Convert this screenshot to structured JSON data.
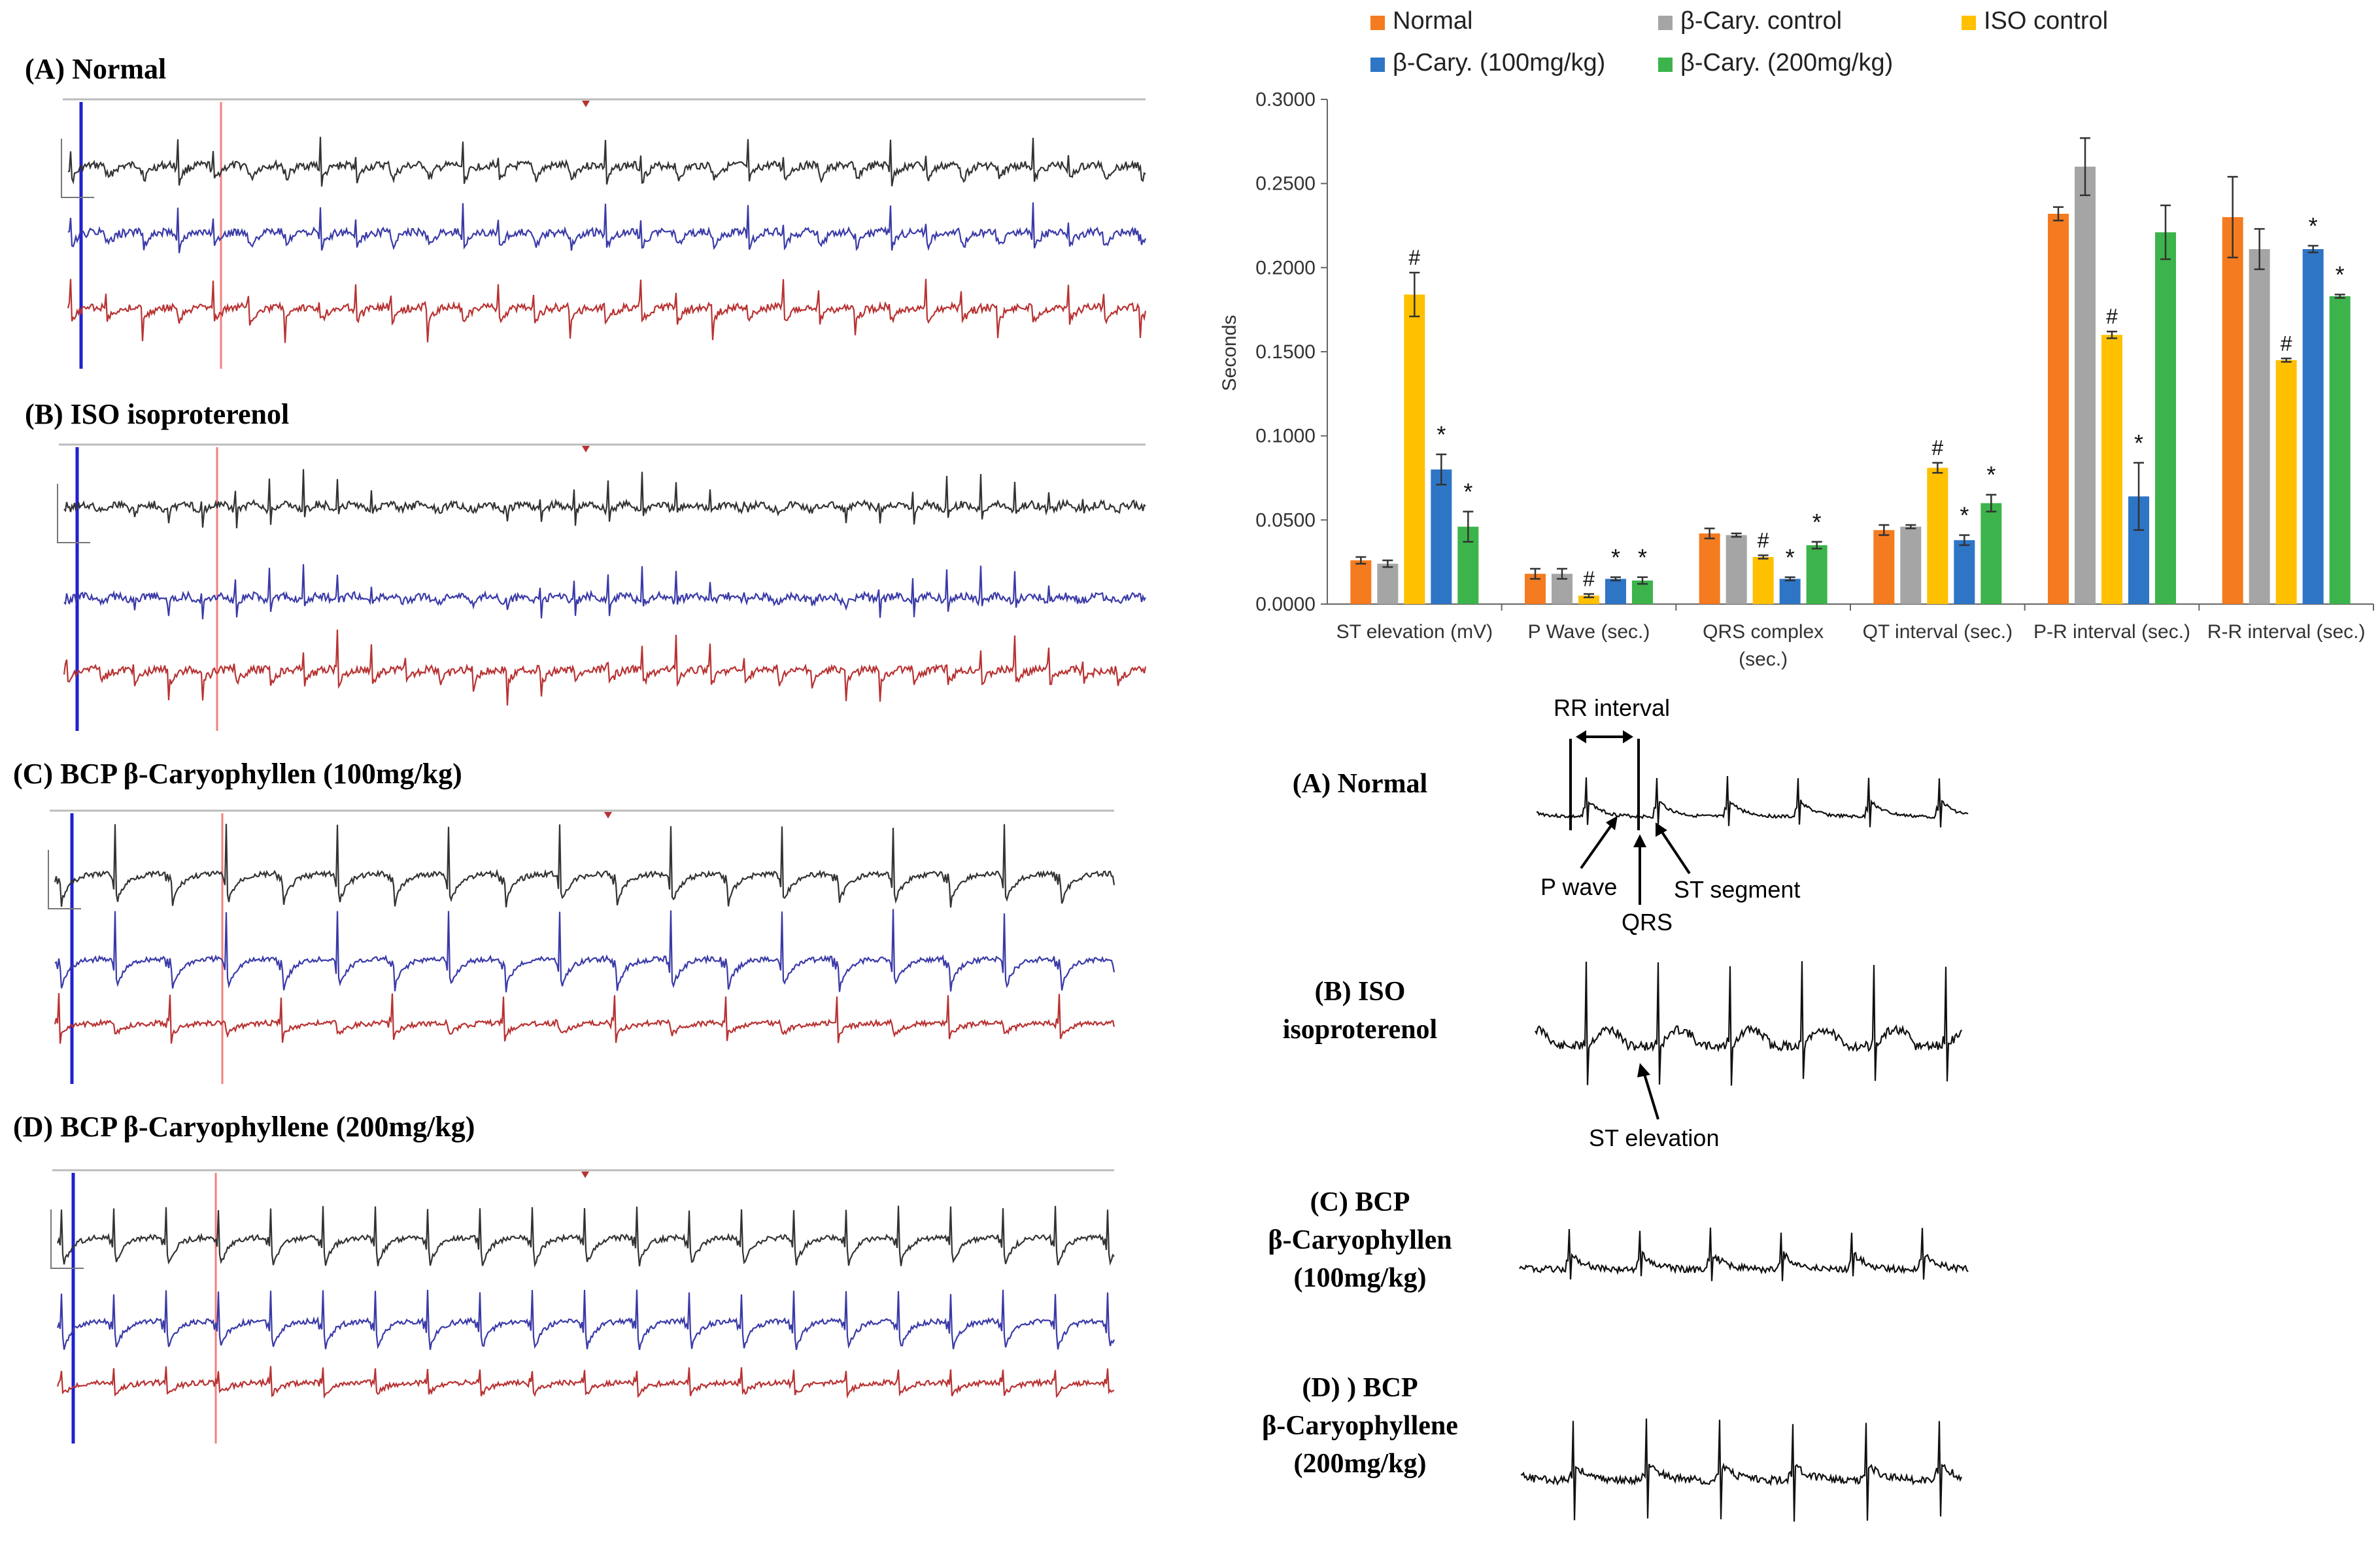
{
  "left_panels": [
    {
      "label": "(A) Normal"
    },
    {
      "label": "(B) ISO isoproterenol"
    },
    {
      "label": "(C) BCP β-Caryophyllen (100mg/kg)"
    },
    {
      "label": "(D) BCP β-Caryophyllene (200mg/kg)"
    }
  ],
  "right_panels": [
    {
      "label_line1": "(A) Normal",
      "label_line2": "",
      "label_line3": ""
    },
    {
      "label_line1": "(B) ISO",
      "label_line2": "isoproterenol",
      "label_line3": ""
    },
    {
      "label_line1": "(C) BCP",
      "label_line2": "β-Caryophyllen",
      "label_line3": "(100mg/kg)"
    },
    {
      "label_line1": "(D) ) BCP",
      "label_line2": "β-Caryophyllene",
      "label_line3": "(200mg/kg)"
    }
  ],
  "annotations": {
    "rr_interval": "RR interval",
    "p_wave": "P wave",
    "qrs": "QRS",
    "st_segment": "ST segment",
    "st_elevation": "ST elevation"
  },
  "colors": {
    "normal": "#F47B20",
    "bcary_control": "#A5A5A5",
    "iso_control": "#FFC000",
    "bcary100": "#2E75C6",
    "bcary200": "#3CB44B",
    "trace_black": "#333333",
    "trace_blue": "#3A3AA8",
    "trace_red": "#B83232"
  },
  "chart_data": {
    "type": "bar",
    "title": "",
    "ylabel": "Seconds",
    "xlabel": "",
    "ylim": [
      0,
      0.3
    ],
    "yticks": [
      "0.0000",
      "0.0500",
      "0.1000",
      "0.1500",
      "0.2000",
      "0.2500",
      "0.3000"
    ],
    "ytick_values": [
      0,
      0.05,
      0.1,
      0.15,
      0.2,
      0.25,
      0.3
    ],
    "categories": [
      [
        "ST elevation (mV)"
      ],
      [
        "P Wave  (sec.)"
      ],
      [
        "QRS complex",
        "(sec.)"
      ],
      [
        "QT interval  (sec.)"
      ],
      [
        "P-R interval  (sec.)"
      ],
      [
        "R-R interval  (sec.)"
      ]
    ],
    "legend": [
      {
        "name": "Normal",
        "color": "#F47B20"
      },
      {
        "name": "β-Cary. control",
        "color": "#A5A5A5"
      },
      {
        "name": "ISO control",
        "color": "#FFC000"
      },
      {
        "name": "β-Cary. (100mg/kg)",
        "color": "#2E75C6"
      },
      {
        "name": "β-Cary. (200mg/kg)",
        "color": "#3CB44B"
      }
    ],
    "series": [
      {
        "name": "Normal",
        "values": [
          0.026,
          0.018,
          0.042,
          0.044,
          0.232,
          0.23
        ],
        "errors": [
          0.002,
          0.003,
          0.003,
          0.003,
          0.004,
          0.024
        ],
        "marks": [
          "",
          "",
          "",
          "",
          "",
          ""
        ]
      },
      {
        "name": "β-Cary. control",
        "values": [
          0.024,
          0.018,
          0.041,
          0.046,
          0.26,
          0.211
        ],
        "errors": [
          0.002,
          0.003,
          0.001,
          0.001,
          0.017,
          0.012
        ],
        "marks": [
          "",
          "",
          "",
          "",
          "",
          ""
        ]
      },
      {
        "name": "ISO control",
        "values": [
          0.184,
          0.005,
          0.028,
          0.081,
          0.16,
          0.145
        ],
        "errors": [
          0.013,
          0.001,
          0.001,
          0.003,
          0.002,
          0.001
        ],
        "marks": [
          "#",
          "#",
          "#",
          "#",
          "#",
          "#"
        ]
      },
      {
        "name": "β-Cary. (100mg/kg)",
        "values": [
          0.08,
          0.015,
          0.015,
          0.038,
          0.064,
          0.211
        ],
        "errors": [
          0.009,
          0.001,
          0.001,
          0.003,
          0.02,
          0.002
        ],
        "marks": [
          "*",
          "*",
          "*",
          "*",
          "*",
          "*"
        ]
      },
      {
        "name": "β-Cary. (200mg/kg)",
        "values": [
          0.046,
          0.014,
          0.035,
          0.06,
          0.221,
          0.183
        ],
        "errors": [
          0.009,
          0.002,
          0.002,
          0.005,
          0.016,
          0.001
        ],
        "marks": [
          "*",
          "*",
          "*",
          "*",
          "",
          "*"
        ]
      }
    ]
  }
}
